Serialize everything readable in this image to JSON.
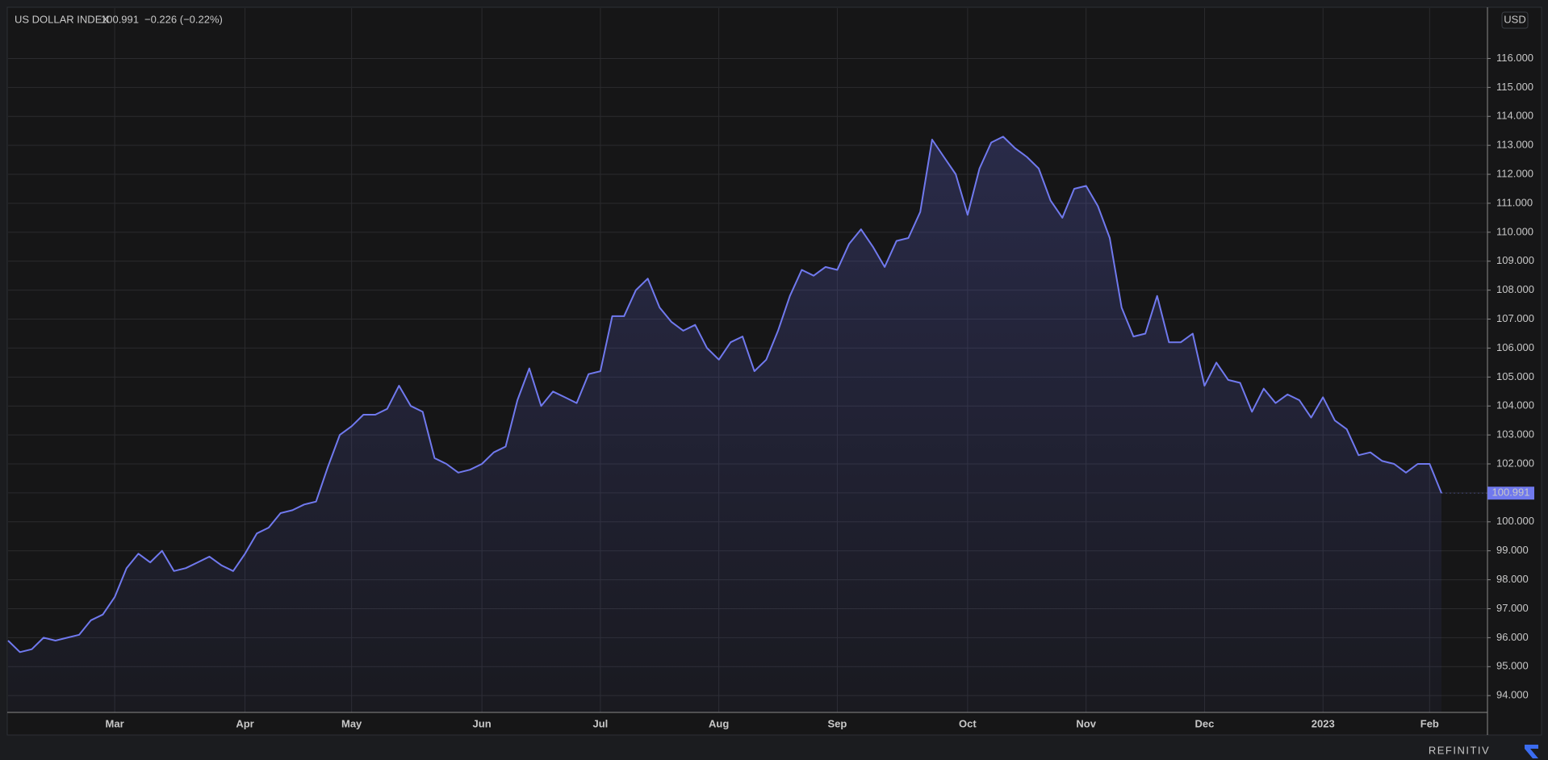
{
  "chart_data": {
    "type": "line",
    "title": "US DOLLAR INDEX",
    "change_label": "−0.226 (−0.22%)",
    "currency": "USD",
    "brand": "REFINITIV",
    "color": "#7079ee",
    "grid": true,
    "categories": [
      null,
      null,
      null,
      null,
      null,
      null,
      null,
      null,
      null,
      "Mar",
      null,
      null,
      null,
      null,
      null,
      null,
      null,
      null,
      null,
      null,
      "Apr",
      null,
      null,
      null,
      null,
      null,
      null,
      null,
      null,
      "May",
      null,
      null,
      null,
      null,
      null,
      null,
      null,
      null,
      null,
      null,
      "Jun",
      null,
      null,
      null,
      null,
      null,
      null,
      null,
      null,
      null,
      "Jul",
      null,
      null,
      null,
      null,
      null,
      null,
      null,
      null,
      null,
      "Aug",
      null,
      null,
      null,
      null,
      null,
      null,
      null,
      null,
      null,
      "Sep",
      null,
      null,
      null,
      null,
      null,
      null,
      null,
      null,
      null,
      null,
      "Oct",
      null,
      null,
      null,
      null,
      null,
      null,
      null,
      null,
      null,
      "Nov",
      null,
      null,
      null,
      null,
      null,
      null,
      null,
      null,
      null,
      "Dec",
      null,
      null,
      null,
      null,
      null,
      null,
      null,
      null,
      null,
      "2023",
      null,
      null,
      null,
      null,
      null,
      null,
      null,
      null,
      "Feb",
      null
    ],
    "values": [
      95.9,
      95.5,
      95.6,
      96.0,
      95.9,
      96.0,
      96.1,
      96.6,
      96.8,
      97.4,
      98.4,
      98.9,
      98.6,
      99.0,
      98.3,
      98.4,
      98.6,
      98.8,
      98.5,
      98.3,
      98.9,
      99.6,
      99.8,
      100.3,
      100.4,
      100.6,
      100.7,
      101.9,
      103.0,
      103.3,
      103.7,
      103.7,
      103.9,
      104.7,
      104.0,
      103.8,
      102.2,
      102.0,
      101.7,
      101.8,
      102.0,
      102.4,
      102.6,
      104.2,
      105.3,
      104.0,
      104.5,
      104.3,
      104.1,
      105.1,
      105.2,
      107.1,
      107.1,
      108.0,
      108.4,
      107.4,
      106.9,
      106.6,
      106.8,
      106.0,
      105.6,
      106.2,
      106.4,
      105.2,
      105.6,
      106.6,
      107.8,
      108.7,
      108.5,
      108.8,
      108.7,
      109.6,
      110.1,
      109.5,
      108.8,
      109.7,
      109.8,
      110.7,
      113.2,
      112.6,
      112.0,
      110.6,
      112.2,
      113.1,
      113.3,
      112.9,
      112.6,
      112.2,
      111.1,
      110.5,
      111.5,
      111.6,
      110.9,
      109.8,
      107.4,
      106.4,
      106.5,
      107.8,
      106.2,
      106.2,
      106.5,
      104.7,
      105.5,
      104.9,
      104.8,
      103.8,
      104.6,
      104.1,
      104.4,
      104.2,
      103.6,
      104.3,
      103.5,
      103.2,
      102.3,
      102.4,
      102.1,
      102.0,
      101.7,
      102.0,
      102.0,
      100.991
    ],
    "ylim": [
      93.42,
      117.74
    ],
    "yticks": [
      {
        "value": 94,
        "label": "94.000"
      },
      {
        "value": 95,
        "label": "95.000"
      },
      {
        "value": 96,
        "label": "96.000"
      },
      {
        "value": 97,
        "label": "97.000"
      },
      {
        "value": 98,
        "label": "98.000"
      },
      {
        "value": 99,
        "label": "99.000"
      },
      {
        "value": 100,
        "label": "100.000"
      },
      {
        "value": 101,
        "label": "101.000"
      },
      {
        "value": 102,
        "label": "102.000"
      },
      {
        "value": 103,
        "label": "103.000"
      },
      {
        "value": 104,
        "label": "104.000"
      },
      {
        "value": 105,
        "label": "105.000"
      },
      {
        "value": 106,
        "label": "106.000"
      },
      {
        "value": 107,
        "label": "107.000"
      },
      {
        "value": 108,
        "label": "108.000"
      },
      {
        "value": 109,
        "label": "109.000"
      },
      {
        "value": 110,
        "label": "110.000"
      },
      {
        "value": 111,
        "label": "111.000"
      },
      {
        "value": 112,
        "label": "112.000"
      },
      {
        "value": 113,
        "label": "113.000"
      },
      {
        "value": 114,
        "label": "114.000"
      },
      {
        "value": 115,
        "label": "115.000"
      },
      {
        "value": 116,
        "label": "116.000"
      }
    ]
  }
}
